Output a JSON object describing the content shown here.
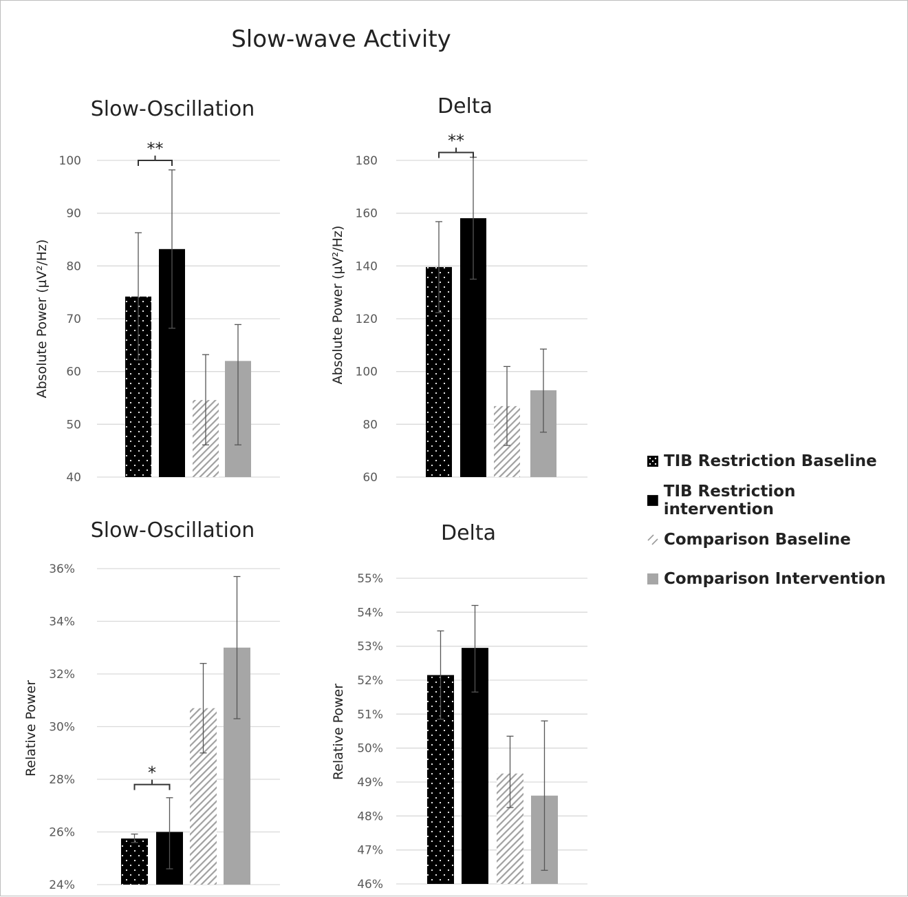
{
  "title": "Slow-wave Activity",
  "colors": {
    "tib_baseline": "#000000",
    "tib_intervention": "#000000",
    "comparison_baseline": "#ababab",
    "comparison_intervention": "#a6a6a6",
    "gridline": "#d9d9d9"
  },
  "legend": [
    {
      "label": "TIB Restriction Baseline",
      "pattern": "dotted-black"
    },
    {
      "label": "TIB Restriction intervention",
      "pattern": "solid-black"
    },
    {
      "label": "Comparison Baseline",
      "pattern": "hatched-gray"
    },
    {
      "label": "Comparison Intervention",
      "pattern": "solid-gray"
    }
  ],
  "chart_data": [
    {
      "type": "bar",
      "title": "Slow-Oscillation",
      "ylabel": "Absolute Power (µV²/Hz)",
      "ylim": [
        40,
        100
      ],
      "yticks": [
        "40",
        "50",
        "60",
        "70",
        "80",
        "90",
        "100"
      ],
      "ytick_values": [
        40,
        50,
        60,
        70,
        80,
        90,
        100
      ],
      "grid": true,
      "series": [
        {
          "name": "TIB Restriction Baseline",
          "value": 74.2,
          "err_low": 62.2,
          "err_high": 86.3
        },
        {
          "name": "TIB Restriction intervention",
          "value": 83.2,
          "err_low": 68.2,
          "err_high": 98.2
        },
        {
          "name": "Comparison Baseline",
          "value": 54.6,
          "err_low": 46.1,
          "err_high": 63.2
        },
        {
          "name": "Comparison Intervention",
          "value": 62.0,
          "err_low": 46.1,
          "err_high": 68.9
        }
      ],
      "significance": {
        "bars": [
          0,
          1
        ],
        "label": "**",
        "at": 100
      }
    },
    {
      "type": "bar",
      "title": "Delta",
      "ylabel": "Absolute Power (µV²/Hz)",
      "ylim": [
        60,
        180
      ],
      "yticks": [
        "60",
        "80",
        "100",
        "120",
        "140",
        "160",
        "180"
      ],
      "ytick_values": [
        60,
        80,
        100,
        120,
        140,
        160,
        180
      ],
      "grid": true,
      "series": [
        {
          "name": "TIB Restriction Baseline",
          "value": 139.6,
          "err_low": 122.3,
          "err_high": 156.8
        },
        {
          "name": "TIB Restriction intervention",
          "value": 158.1,
          "err_low": 135.0,
          "err_high": 181.2
        },
        {
          "name": "Comparison Baseline",
          "value": 86.9,
          "err_low": 72.0,
          "err_high": 101.9
        },
        {
          "name": "Comparison Intervention",
          "value": 92.9,
          "err_low": 77.0,
          "err_high": 108.5
        }
      ],
      "significance": {
        "bars": [
          0,
          1
        ],
        "label": "**",
        "at": 183
      }
    },
    {
      "type": "bar",
      "title": "Slow-Oscillation",
      "ylabel": "Relative Power",
      "ylim": [
        24,
        36
      ],
      "yticks": [
        "24%",
        "26%",
        "28%",
        "30%",
        "32%",
        "34%",
        "36%"
      ],
      "ytick_values": [
        24,
        26,
        28,
        30,
        32,
        34,
        36
      ],
      "grid": true,
      "series": [
        {
          "name": "TIB Restriction Baseline",
          "value": 25.75,
          "err_low": 25.6,
          "err_high": 25.92
        },
        {
          "name": "TIB Restriction intervention",
          "value": 26.0,
          "err_low": 24.6,
          "err_high": 27.3
        },
        {
          "name": "Comparison Baseline",
          "value": 30.7,
          "err_low": 29.0,
          "err_high": 32.4
        },
        {
          "name": "Comparison Intervention",
          "value": 33.0,
          "err_low": 30.3,
          "err_high": 35.7
        }
      ],
      "significance": {
        "bars": [
          0,
          1
        ],
        "label": "*",
        "at": 27.8
      }
    },
    {
      "type": "bar",
      "title": "Delta",
      "ylabel": "Relative Power",
      "ylim": [
        46,
        55
      ],
      "yticks": [
        "46%",
        "47%",
        "48%",
        "49%",
        "50%",
        "51%",
        "52%",
        "53%",
        "54%",
        "55%"
      ],
      "ytick_values": [
        46,
        47,
        48,
        49,
        50,
        51,
        52,
        53,
        54,
        55
      ],
      "grid": true,
      "series": [
        {
          "name": "TIB Restriction Baseline",
          "value": 52.15,
          "err_low": 50.85,
          "err_high": 53.45
        },
        {
          "name": "TIB Restriction intervention",
          "value": 52.95,
          "err_low": 51.65,
          "err_high": 54.2
        },
        {
          "name": "Comparison Baseline",
          "value": 49.25,
          "err_low": 48.25,
          "err_high": 50.35
        },
        {
          "name": "Comparison Intervention",
          "value": 48.6,
          "err_low": 46.4,
          "err_high": 50.8
        }
      ]
    }
  ]
}
